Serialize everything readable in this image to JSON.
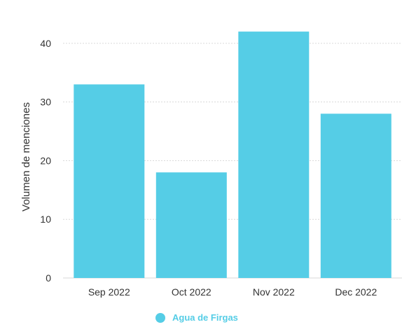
{
  "chart_data": {
    "type": "bar",
    "title": "",
    "xlabel": "",
    "ylabel": "Volumen de menciones",
    "categories": [
      "Sep 2022",
      "Oct 2022",
      "Nov 2022",
      "Dec 2022"
    ],
    "series": [
      {
        "name": "Agua de Firgas",
        "values": [
          33,
          18,
          42,
          28
        ],
        "color": "#55cde6"
      }
    ],
    "ylim": [
      0,
      45
    ],
    "yticks": [
      0,
      10,
      20,
      30,
      40
    ],
    "grid": true,
    "legend": "bottom-center"
  }
}
